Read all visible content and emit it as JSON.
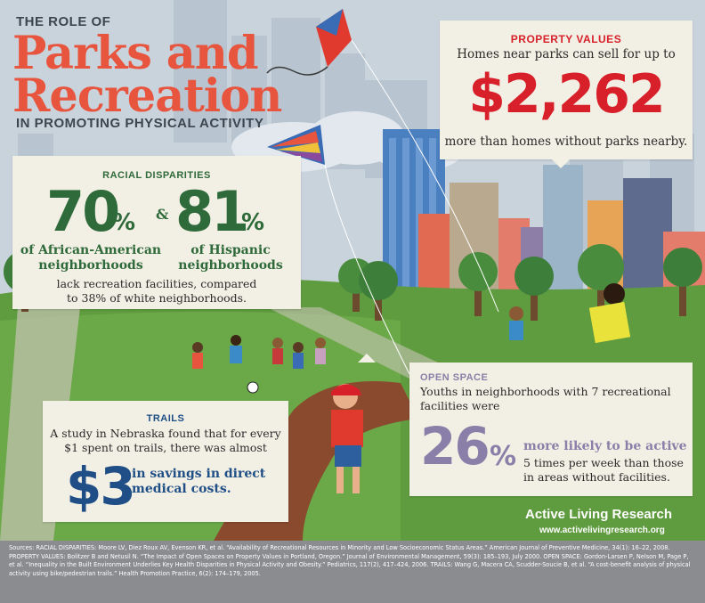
{
  "title": {
    "line1": "THE ROLE OF",
    "line2": "Parks and",
    "line3": "Recreation",
    "line4": "IN PROMOTING PHYSICAL ACTIVITY"
  },
  "property": {
    "label": "PROPERTY VALUES",
    "intro": "Homes near parks can sell for up to",
    "amount": "$2,262",
    "outro": "more than homes without parks nearby."
  },
  "racial": {
    "label": "RACIAL DISPARITIES",
    "stat1": "70",
    "stat1_pct": "%",
    "amp": "&",
    "stat2": "81",
    "stat2_pct": "%",
    "group1_line1": "of African-American",
    "group1_line2": "neighborhoods",
    "group2_line1": "of Hispanic",
    "group2_line2": "neighborhoods",
    "note_line1": "lack recreation facilities, compared",
    "note_line2": "to 38% of white neighborhoods."
  },
  "trails": {
    "label": "TRAILS",
    "text_line1": "A study in Nebraska found that for every",
    "text_line2": "$1 spent on trails, there was almost",
    "amount": "$3",
    "savings_line1": "in savings in direct",
    "savings_line2": "medical costs."
  },
  "open_space": {
    "label": "OPEN SPACE",
    "text_line1": "Youths in neighborhoods with 7 recreational",
    "text_line2": "facilities were",
    "stat": "26",
    "stat_pct": "%",
    "highlight": "more likely to be active",
    "detail_line1": "5 times per week than those",
    "detail_line2": "in areas without facilities."
  },
  "brand": {
    "name": "Active Living Research",
    "url": "www.activelivingresearch.org"
  },
  "sources": "Sources: RACIAL DISPARITIES: Moore LV, Diez Roux AV, Evenson KR, et al. “Availability of Recreational Resources in Minority and Low Socioeconomic Status Areas.” American Journal of Preventive Medicine, 34(1): 16–22, 2008. PROPERTY VALUES: Bolitzer B and Netusil N. “The Impact of Open Spaces on Property Values in Portland, Oregon.” Journal of Environmental Management, 59(3): 185–193, July 2000. OPEN SPACE: Gordon-Larsen P, Nelson M, Page P, et al. “Inequality in the Built Environment Underlies Key Health Disparities in Physical Activity and Obesity.” Pediatrics, 117(2), 417–424, 2006. TRAILS: Wang G, Macera CA, Scudder-Soucie B, et al. “A cost-benefit analysis of physical activity using bike/pedestrian trails.” Health Promotion Practice, 6(2): 174–179, 2005.",
  "colors": {
    "accent_red": "#d8202a",
    "title_orange": "#e8553e",
    "green": "#2f6a3a",
    "blue": "#1f4f86",
    "purple": "#8a7fa8",
    "card": "#f2efe4",
    "grass": "#5f9b3f"
  },
  "icons": [
    "kite-red",
    "kite-striped",
    "city-skyline",
    "trees",
    "children-playing",
    "soccer-ball",
    "boy-running",
    "dirt-path"
  ]
}
